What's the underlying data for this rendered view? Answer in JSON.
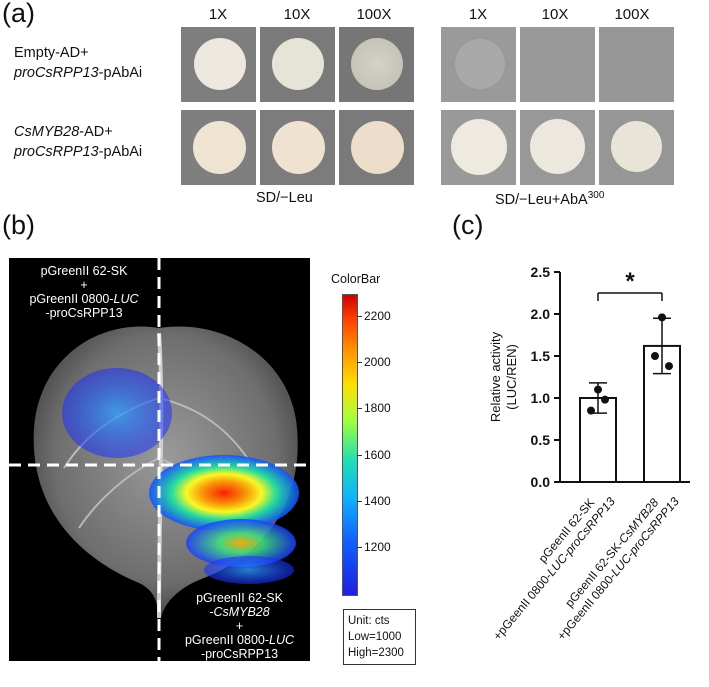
{
  "panel_a": {
    "letter": "(a)",
    "dilutions": [
      "1X",
      "10X",
      "100X"
    ],
    "rows": [
      {
        "line1": "Empty-AD+",
        "line2_italic": "proCsRPP13",
        "line2_rest": "-pAbAi"
      },
      {
        "line1_italic": "CsMYB28",
        "line1_rest": "-AD+",
        "line2_italic": "proCsRPP13",
        "line2_rest": "-pAbAi"
      }
    ],
    "media_left": "SD/−Leu",
    "media_right_main": "SD/−Leu+AbA",
    "media_right_sup": "300",
    "growth_left": [
      [
        0.95,
        0.9,
        0.7
      ],
      [
        0.95,
        0.95,
        0.95
      ]
    ],
    "growth_right": [
      [
        0.15,
        0.0,
        0.0
      ],
      [
        0.9,
        0.85,
        0.75
      ]
    ]
  },
  "panel_b": {
    "letter": "(b)",
    "top_label": {
      "l1": "pGreenII 62-SK",
      "l2": "+",
      "l3a": "pGreenII 0800-",
      "l3i": "LUC",
      "l4": "-proCsRPP13"
    },
    "bottom_label": {
      "l1": "pGreenII 62-SK",
      "l2": "-CsMYB28",
      "l3": "+",
      "l4a": "pGreenII 0800-",
      "l4i": "LUC",
      "l5": "-proCsRPP13"
    },
    "colorbar": {
      "title": "ColorBar",
      "ticks": [
        "2200",
        "2000",
        "1800",
        "1600",
        "1400",
        "1200"
      ],
      "tick_values": [
        2200,
        2000,
        1800,
        1600,
        1400,
        1200
      ],
      "min": 1000,
      "max": 2300
    },
    "unit": {
      "l1": "Unit: cts",
      "l2": "Low=1000",
      "l3": "High=2300"
    }
  },
  "panel_c": {
    "letter": "(c)",
    "chart_data": {
      "type": "bar",
      "categories": [
        "pGeenII 62-SK +pGeenII 0800-LUC-proCsRPP13",
        "pGeenII 62-SK-CsMYB28 +pGeenII 0800-LUC-proCsRPP13"
      ],
      "values": [
        1.0,
        1.62
      ],
      "errors": [
        0.18,
        0.33
      ],
      "points": [
        [
          1.1,
          0.85,
          0.98
        ],
        [
          1.96,
          1.5,
          1.38
        ]
      ],
      "ylabel": "Relative activity (LUC/REN)",
      "yticks": [
        "0.0",
        "0.5",
        "1.0",
        "1.5",
        "2.0",
        "2.5"
      ],
      "ylim": [
        0,
        2.5
      ],
      "significance": "*",
      "xlabels": [
        {
          "l1": "pGeenII 62-SK",
          "l2a": "+pGeenII 0800-",
          "l2i": "LUC-proCsRPP13"
        },
        {
          "l1a": "pGeenII 62-SK-",
          "l1i": "CsMYB28",
          "l2a": "+pGeenII 0800-",
          "l2i": "LUC-proCsRPP13"
        }
      ]
    }
  }
}
